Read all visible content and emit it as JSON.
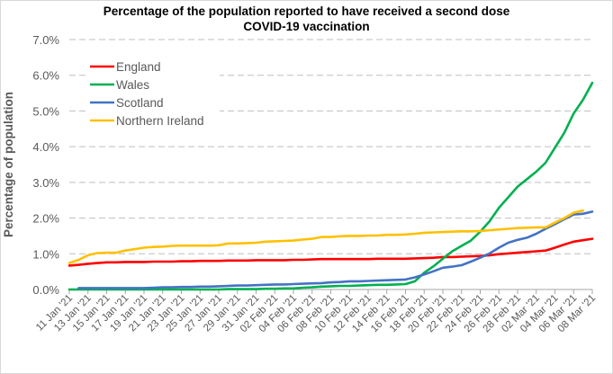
{
  "chart_data": {
    "type": "line",
    "title": "Percentage of the population reported to have received a second dose",
    "subtitle": "COVID-19 vaccination",
    "xlabel": "",
    "ylabel": "Percentage of population",
    "ylim": [
      0,
      7
    ],
    "yticks": [
      "0.0%",
      "1.0%",
      "2.0%",
      "3.0%",
      "4.0%",
      "5.0%",
      "6.0%",
      "7.0%"
    ],
    "grid": "horizontal dashed",
    "legend_position": "top-left",
    "x_start": "11 Jan '21",
    "x_end": "08 Mar '21",
    "x_tick_labels": [
      "11 Jan '21",
      "13 Jan '21",
      "15 Jan '21",
      "17 Jan '21",
      "19 Jan '21",
      "21 Jan '21",
      "23 Jan '21",
      "25 Jan '21",
      "27 Jan '21",
      "29 Jan '21",
      "31 Jan '21",
      "02 Feb '21",
      "04 Feb '21",
      "06 Feb '21",
      "08 Feb '21",
      "10 Feb '21",
      "12 Feb '21",
      "14 Feb '21",
      "16 Feb '21",
      "18 Feb '21",
      "20 Feb '21",
      "22 Feb '21",
      "24 Feb '21",
      "26 Feb '21",
      "28 Feb '21",
      "02 Mar '21",
      "04 Mar '21",
      "06 Mar '21",
      "08 Mar '21"
    ],
    "x_days": 57,
    "series": [
      {
        "name": "England",
        "color": "#ff0000",
        "values": [
          0.67,
          0.69,
          0.72,
          0.74,
          0.76,
          0.76,
          0.77,
          0.77,
          0.77,
          0.78,
          0.78,
          0.78,
          0.79,
          0.79,
          0.8,
          0.8,
          0.8,
          0.81,
          0.81,
          0.81,
          0.82,
          0.82,
          0.82,
          0.82,
          0.83,
          0.83,
          0.84,
          0.85,
          0.85,
          0.85,
          0.85,
          0.85,
          0.85,
          0.86,
          0.86,
          0.86,
          0.86,
          0.87,
          0.88,
          0.89,
          0.91,
          0.91,
          0.92,
          0.93,
          0.94,
          0.96,
          0.99,
          1.01,
          1.03,
          1.05,
          1.07,
          1.09,
          1.17,
          1.26,
          1.34,
          1.38,
          1.42
        ]
      },
      {
        "name": "Wales",
        "color": "#00b050",
        "values": [
          0.0,
          0.0,
          0.0,
          0.0,
          0.0,
          0.0,
          0.0,
          0.0,
          0.0,
          0.0,
          0.0,
          0.0,
          0.0,
          0.0,
          0.0,
          0.0,
          0.0,
          0.01,
          0.01,
          0.01,
          0.01,
          0.02,
          0.02,
          0.03,
          0.03,
          0.05,
          0.06,
          0.08,
          0.09,
          0.1,
          0.1,
          0.11,
          0.12,
          0.13,
          0.13,
          0.14,
          0.15,
          0.23,
          0.47,
          0.65,
          0.86,
          1.07,
          1.22,
          1.37,
          1.62,
          1.91,
          2.29,
          2.58,
          2.88,
          3.09,
          3.3,
          3.55,
          3.97,
          4.39,
          4.93,
          5.31,
          5.79
        ]
      },
      {
        "name": "Scotland",
        "color": "#4472c4",
        "values": [
          null,
          0.04,
          0.04,
          0.04,
          0.04,
          0.04,
          0.04,
          0.04,
          0.04,
          0.05,
          0.06,
          0.06,
          0.07,
          0.07,
          0.08,
          0.08,
          0.09,
          0.1,
          0.11,
          0.11,
          0.12,
          0.13,
          0.14,
          0.14,
          0.15,
          0.16,
          0.17,
          0.18,
          0.2,
          0.21,
          0.23,
          0.23,
          0.24,
          0.25,
          0.26,
          0.27,
          0.28,
          0.34,
          0.42,
          0.51,
          0.61,
          0.64,
          0.68,
          0.78,
          0.89,
          1.01,
          1.17,
          1.31,
          1.39,
          1.45,
          1.56,
          1.7,
          1.83,
          1.97,
          2.1,
          2.12,
          2.18
        ]
      },
      {
        "name": "Northern Ireland",
        "color": "#ffc000",
        "values": [
          0.74,
          0.83,
          0.96,
          1.02,
          1.03,
          1.03,
          1.09,
          1.13,
          1.17,
          1.19,
          1.2,
          1.22,
          1.23,
          1.23,
          1.23,
          1.23,
          1.24,
          1.29,
          1.29,
          1.3,
          1.31,
          1.34,
          1.35,
          1.36,
          1.37,
          1.4,
          1.42,
          1.47,
          1.47,
          1.49,
          1.5,
          1.5,
          1.51,
          1.51,
          1.53,
          1.53,
          1.54,
          1.56,
          1.59,
          1.6,
          1.61,
          1.62,
          1.63,
          1.63,
          1.64,
          1.66,
          1.68,
          1.7,
          1.72,
          1.73,
          1.74,
          1.74,
          1.87,
          2.0,
          2.15,
          2.21,
          null
        ]
      }
    ]
  }
}
